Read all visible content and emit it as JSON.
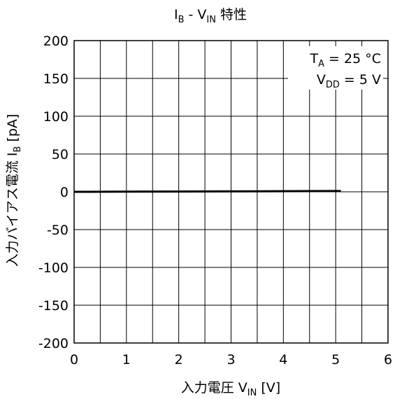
{
  "chart_data": {
    "type": "line",
    "title": {
      "main": "I",
      "main_sub": "B",
      "mid": " - V",
      "mid_sub": "IN",
      "end": " 特性"
    },
    "xlabel": {
      "main": "入力電圧 V",
      "sub": "IN",
      "end": " [V]"
    },
    "ylabel": {
      "main": "入力バイアス電流 I",
      "sub": "B",
      "end": " [pA]"
    },
    "xlim": [
      0,
      6
    ],
    "ylim": [
      -200,
      200
    ],
    "x_ticks": [
      0,
      1,
      2,
      3,
      4,
      5,
      6
    ],
    "y_ticks": [
      -200,
      -150,
      -100,
      -50,
      0,
      50,
      100,
      150,
      200
    ],
    "x_tick_labels": [
      "0",
      "1",
      "2",
      "3",
      "4",
      "5",
      "6"
    ],
    "y_tick_labels": [
      "-200",
      "-150",
      "-100",
      "-50",
      "0",
      "50",
      "100",
      "150",
      "200"
    ],
    "grid": true,
    "annotations": {
      "line1": {
        "main": "T",
        "sub": "A",
        "end": " = 25 °C"
      },
      "line2": {
        "main": "V",
        "sub": "DD",
        "end": " = 5 V"
      }
    },
    "series": [
      {
        "x": [
          0,
          1,
          2,
          3,
          4,
          5,
          5.1
        ],
        "y": [
          0,
          0.2,
          0.4,
          0.6,
          0.8,
          1.0,
          1.0
        ],
        "color": "#000000"
      }
    ]
  }
}
